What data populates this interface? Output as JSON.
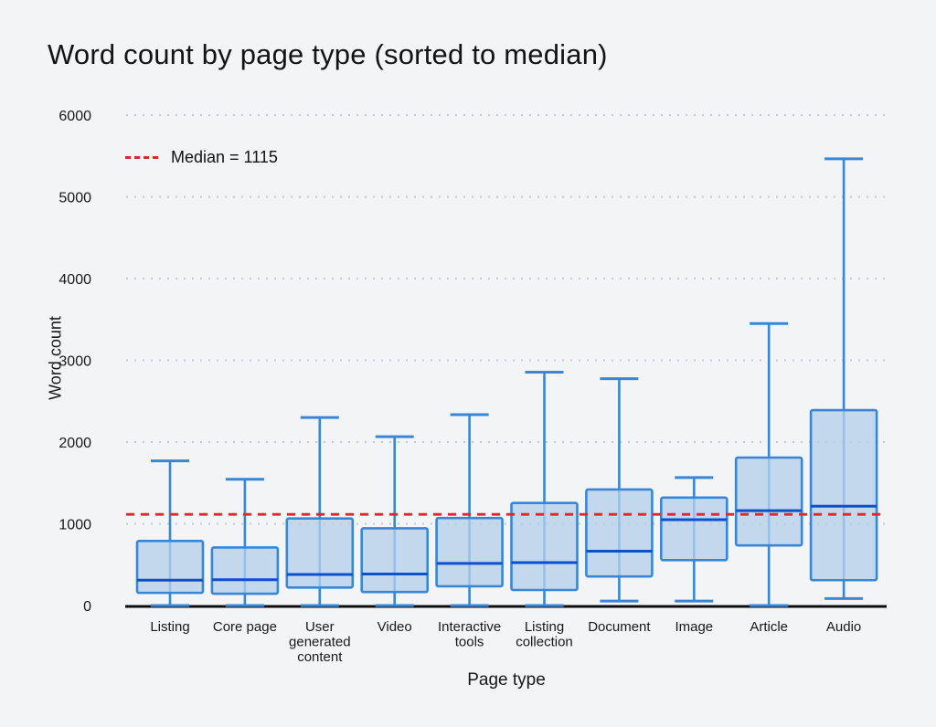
{
  "title": "Word count by page type (sorted to median)",
  "chart_data": {
    "type": "boxplot",
    "title": "Word count by page type (sorted to median)",
    "xlabel": "Page type",
    "ylabel": "Word count",
    "ylim": [
      0,
      6000
    ],
    "yticks": [
      0,
      1000,
      2000,
      3000,
      4000,
      5000,
      6000
    ],
    "grid": "dotted horizontal",
    "legend_position": "top-left",
    "median_line": {
      "label": "Median = 1115",
      "value": 1115
    },
    "categories": [
      "Listing",
      "Core page",
      "User generated content",
      "Video",
      "Interactive tools",
      "Listing collection",
      "Document",
      "Image",
      "Article",
      "Audio"
    ],
    "series": [
      {
        "name": "Listing",
        "label_lines": [
          "Listing"
        ],
        "whisker_low": 0,
        "q1": 155,
        "median": 310,
        "q3": 790,
        "whisker_high": 1770
      },
      {
        "name": "Core page",
        "label_lines": [
          "Core page"
        ],
        "whisker_low": 0,
        "q1": 145,
        "median": 315,
        "q3": 710,
        "whisker_high": 1545
      },
      {
        "name": "User generated content",
        "label_lines": [
          "User",
          "generated",
          "content"
        ],
        "whisker_low": 0,
        "q1": 220,
        "median": 380,
        "q3": 1065,
        "whisker_high": 2300
      },
      {
        "name": "Video",
        "label_lines": [
          "Video"
        ],
        "whisker_low": 0,
        "q1": 165,
        "median": 385,
        "q3": 945,
        "whisker_high": 2065
      },
      {
        "name": "Interactive tools",
        "label_lines": [
          "Interactive",
          "tools"
        ],
        "whisker_low": 0,
        "q1": 235,
        "median": 515,
        "q3": 1070,
        "whisker_high": 2335
      },
      {
        "name": "Listing collection",
        "label_lines": [
          "Listing",
          "collection"
        ],
        "whisker_low": 0,
        "q1": 190,
        "median": 525,
        "q3": 1255,
        "whisker_high": 2855
      },
      {
        "name": "Document",
        "label_lines": [
          "Document"
        ],
        "whisker_low": 55,
        "q1": 355,
        "median": 665,
        "q3": 1420,
        "whisker_high": 2775
      },
      {
        "name": "Image",
        "label_lines": [
          "Image"
        ],
        "whisker_low": 55,
        "q1": 555,
        "median": 1050,
        "q3": 1320,
        "whisker_high": 1565
      },
      {
        "name": "Article",
        "label_lines": [
          "Article"
        ],
        "whisker_low": 0,
        "q1": 735,
        "median": 1160,
        "q3": 1810,
        "whisker_high": 3450
      },
      {
        "name": "Audio",
        "label_lines": [
          "Audio"
        ],
        "whisker_low": 85,
        "q1": 310,
        "median": 1215,
        "q3": 2390,
        "whisker_high": 5465
      }
    ]
  },
  "colors": {
    "background": "#f2f4f6",
    "box_fill": "#b6d0ea",
    "box_stroke": "#3a86d6",
    "median_stroke": "#0b51cc",
    "overall_median_red": "#e8222c",
    "gridline": "#c4c7cb",
    "axis": "#0d0d0d",
    "text": "#17181a",
    "title_text": "#141414"
  }
}
